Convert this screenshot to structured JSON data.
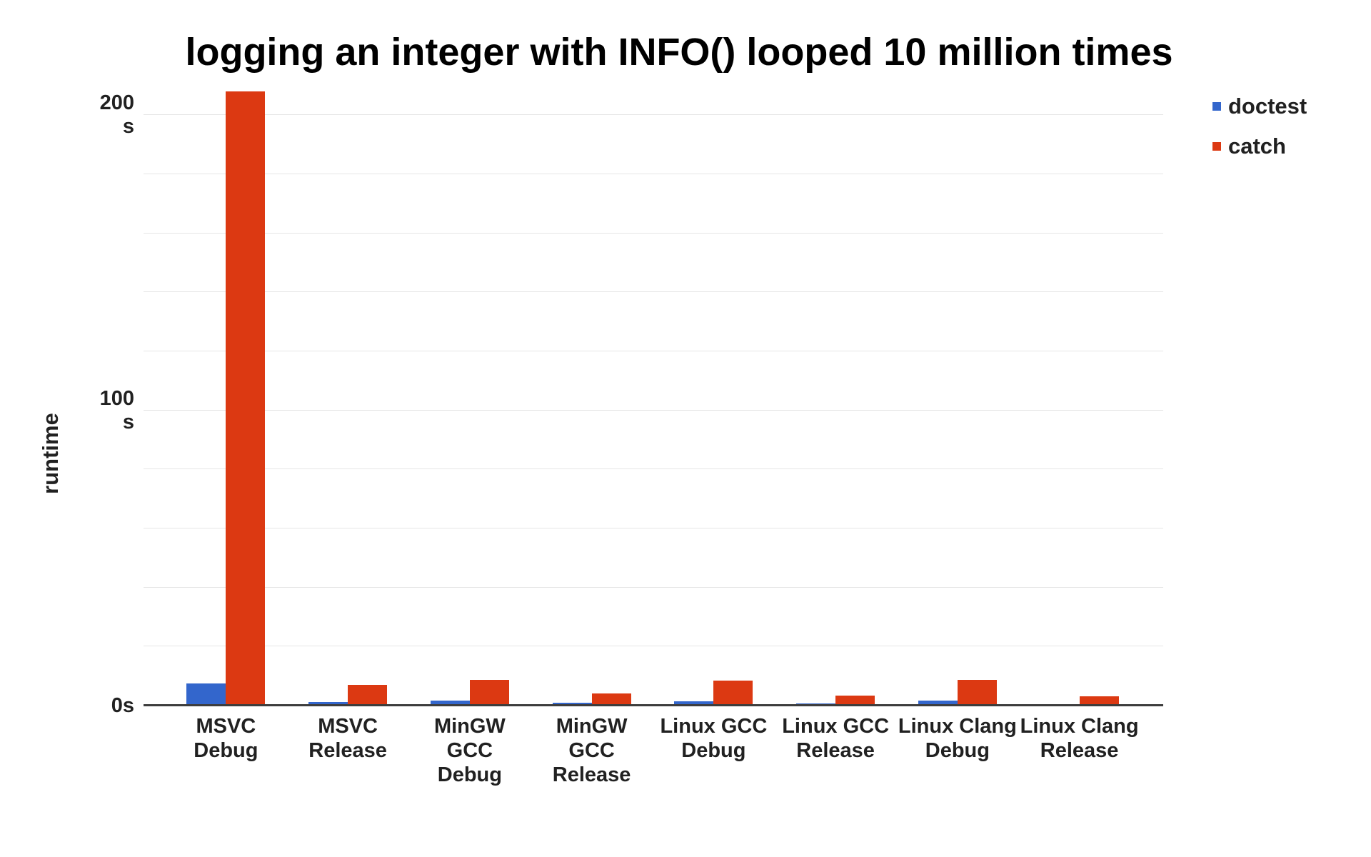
{
  "chart_data": {
    "type": "bar",
    "title": "logging an integer with INFO() looped 10 million times",
    "xlabel": "",
    "ylabel": "runtime",
    "ylim": [
      0,
      210
    ],
    "grid": true,
    "grid_step": 20,
    "legend_position": "top-right",
    "categories": [
      "MSVC Debug",
      "MSVC Release",
      "MinGW GCC Debug",
      "MinGW GCC Release",
      "Linux GCC Debug",
      "Linux GCC Release",
      "Linux Clang Debug",
      "Linux Clang Release"
    ],
    "series": [
      {
        "name": "doctest",
        "color": "#3366cc",
        "values": [
          7.4,
          1.2,
          1.8,
          1.0,
          1.4,
          0.7,
          1.6,
          0.5
        ]
      },
      {
        "name": "catch",
        "color": "#dc3912",
        "values": [
          208,
          6.9,
          8.6,
          4.1,
          8.5,
          3.4,
          8.8,
          3.1
        ]
      }
    ],
    "y_ticks": [
      {
        "value": 200,
        "lines": [
          "200",
          "s"
        ],
        "label": "200 s"
      },
      {
        "value": 100,
        "lines": [
          "100",
          "s"
        ],
        "label": "100 s"
      },
      {
        "value": 0,
        "lines": [
          "0s"
        ],
        "label": "0s"
      }
    ]
  }
}
